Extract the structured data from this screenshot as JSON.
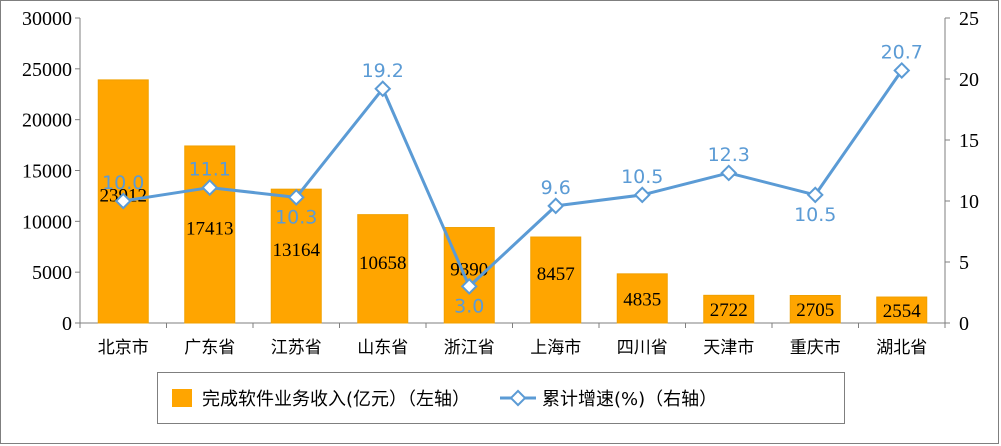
{
  "chart_data": {
    "type": "bar",
    "categories": [
      "北京市",
      "广东省",
      "江苏省",
      "山东省",
      "浙江省",
      "上海市",
      "四川省",
      "天津市",
      "重庆市",
      "湖北省"
    ],
    "series": [
      {
        "name": "完成软件业务收入(亿元）（左轴）",
        "type": "bar",
        "axis": "left",
        "values": [
          23912,
          17413,
          13164,
          10658,
          9390,
          8457,
          4835,
          2722,
          2705,
          2554
        ]
      },
      {
        "name": "累计增速(%)（右轴）",
        "type": "line",
        "axis": "right",
        "values": [
          10.0,
          11.1,
          10.3,
          19.2,
          3.0,
          9.6,
          10.5,
          12.3,
          10.5,
          20.7
        ]
      }
    ],
    "y_left": {
      "ylim": [
        0,
        30000
      ],
      "ticks": [
        0,
        5000,
        10000,
        15000,
        20000,
        25000,
        30000
      ]
    },
    "y_right": {
      "ylim": [
        0,
        25
      ],
      "ticks": [
        0,
        5,
        10,
        15,
        20,
        25
      ]
    },
    "legend_position": "bottom",
    "grid": false
  },
  "colors": {
    "bar": "#ffa500",
    "bar_edge": "#f0a000",
    "line": "#5b9bd5",
    "line_label": "#5b9bd5",
    "axis": "#7f7f7f"
  },
  "legend": {
    "bar_label": "完成软件业务收入(亿元）（左轴）",
    "line_label": "累计增速(%)（右轴）"
  }
}
